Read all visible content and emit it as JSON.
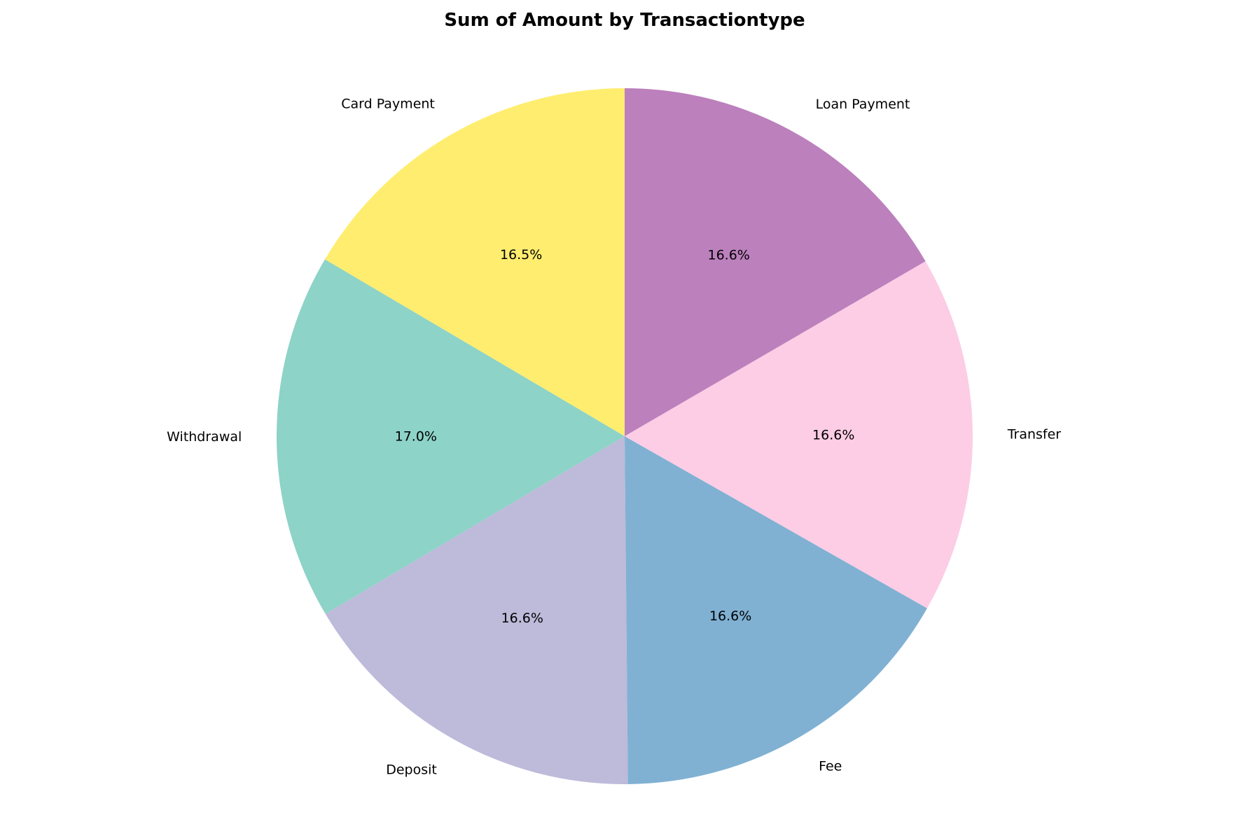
{
  "chart_data": {
    "type": "pie",
    "title": "Sum of Amount by Transactiontype",
    "categories": [
      "Card Payment",
      "Withdrawal",
      "Deposit",
      "Fee",
      "Transfer",
      "Loan Payment"
    ],
    "values": [
      16.5,
      17.0,
      16.6,
      16.6,
      16.6,
      16.6
    ],
    "percent_labels": [
      "16.5%",
      "17.0%",
      "16.6%",
      "16.6%",
      "16.6%",
      "16.6%"
    ],
    "colors": [
      "#ffed6f",
      "#8dd3c7",
      "#bebada",
      "#80b1d3",
      "#fccde5",
      "#bc80bd"
    ],
    "start_angle_deg": 90,
    "direction": "counterclockwise",
    "legend": "none"
  }
}
